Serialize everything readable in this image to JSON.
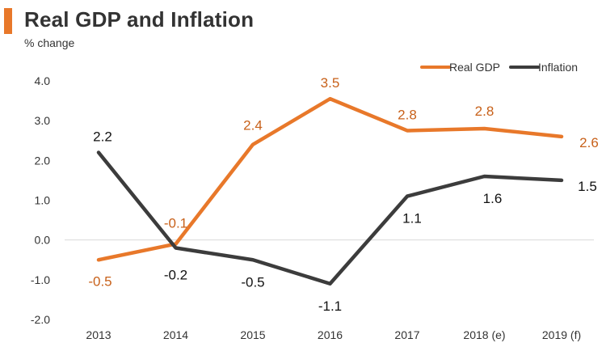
{
  "chart_data": {
    "type": "line",
    "title": "Real GDP and Inflation",
    "subtitle": "% change",
    "categories": [
      "2013",
      "2014",
      "2015",
      "2016",
      "2017",
      "2018 (e)",
      "2019 (f)"
    ],
    "ylim": [
      -2.0,
      4.0
    ],
    "yticks": [
      "4.0",
      "3.0",
      "2.0",
      "1.0",
      "0.0",
      "-1.0",
      "-2.0"
    ],
    "ytick_values": [
      4,
      3,
      2,
      1,
      0,
      -1,
      -2
    ],
    "legend_position": "top-right",
    "grid": false,
    "series": [
      {
        "name": "Real GDP",
        "color": "#e8782a",
        "values": [
          -0.5,
          -0.1,
          2.4,
          3.55,
          2.75,
          2.8,
          2.6
        ],
        "labels": [
          "-0.5",
          "-0.1",
          "2.4",
          "3.5",
          "2.8",
          "2.8",
          "2.6"
        ]
      },
      {
        "name": "Inflation",
        "color": "#3c3c3c",
        "values": [
          2.2,
          -0.2,
          -0.5,
          -1.1,
          1.1,
          1.6,
          1.5
        ],
        "labels": [
          "2.2",
          "-0.2",
          "-0.5",
          "-1.1",
          "1.1",
          "1.6",
          "1.5"
        ]
      }
    ]
  }
}
